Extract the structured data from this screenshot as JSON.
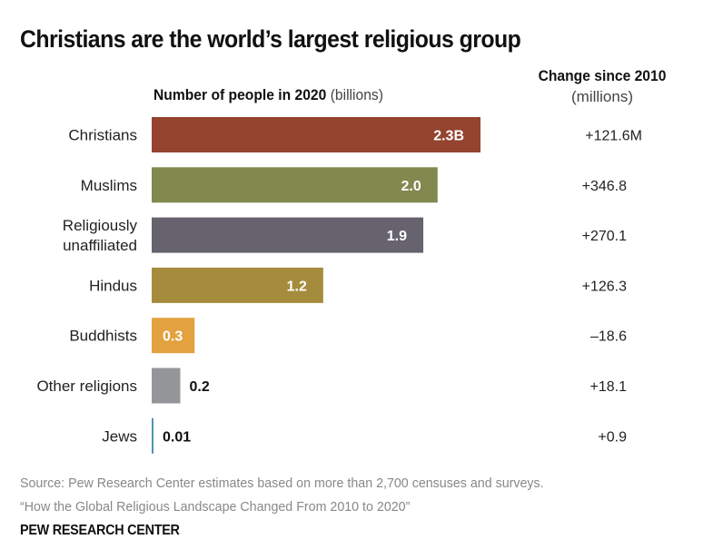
{
  "chart_data": {
    "type": "bar",
    "orientation": "horizontal",
    "title": "Christians are the world’s largest religious group",
    "xlabel_bold": "Number of people in 2020",
    "xlabel_unit": "(billions)",
    "change_header": "Change since 2010",
    "change_unit": "(millions)",
    "xlim": [
      0,
      2.3
    ],
    "grid": false,
    "categories": [
      "Christians",
      "Muslims",
      "Religiously unaffiliated",
      "Hindus",
      "Buddhists",
      "Other religions",
      "Jews"
    ],
    "category_lines": [
      [
        "Christians"
      ],
      [
        "Muslims"
      ],
      [
        "Religiously",
        "unaffiliated"
      ],
      [
        "Hindus"
      ],
      [
        "Buddhists"
      ],
      [
        "Other religions"
      ],
      [
        "Jews"
      ]
    ],
    "values": [
      2.3,
      2.0,
      1.9,
      1.2,
      0.3,
      0.2,
      0.01
    ],
    "value_labels": [
      "2.3B",
      "2.0",
      "1.9",
      "1.2",
      "0.3",
      "0.2",
      "0.01"
    ],
    "label_inside": [
      true,
      true,
      true,
      true,
      true,
      false,
      false
    ],
    "colors": [
      "#94432f",
      "#82894f",
      "#66636f",
      "#a58c3c",
      "#e3a23f",
      "#939598",
      "#4f94b8"
    ],
    "change_since_2010": [
      121.6,
      346.8,
      270.1,
      126.3,
      -18.6,
      18.1,
      0.9
    ],
    "change_labels": [
      "+121.6M",
      "+346.8",
      "+270.1",
      "+126.3",
      "–18.6",
      "+18.1",
      "+0.9"
    ]
  },
  "source": {
    "line1": "Source: Pew Research Center estimates based on more than 2,700 censuses and surveys.",
    "line2": "“How the Global Religious Landscape Changed From 2010 to 2020”"
  },
  "brand": "PEW RESEARCH CENTER"
}
